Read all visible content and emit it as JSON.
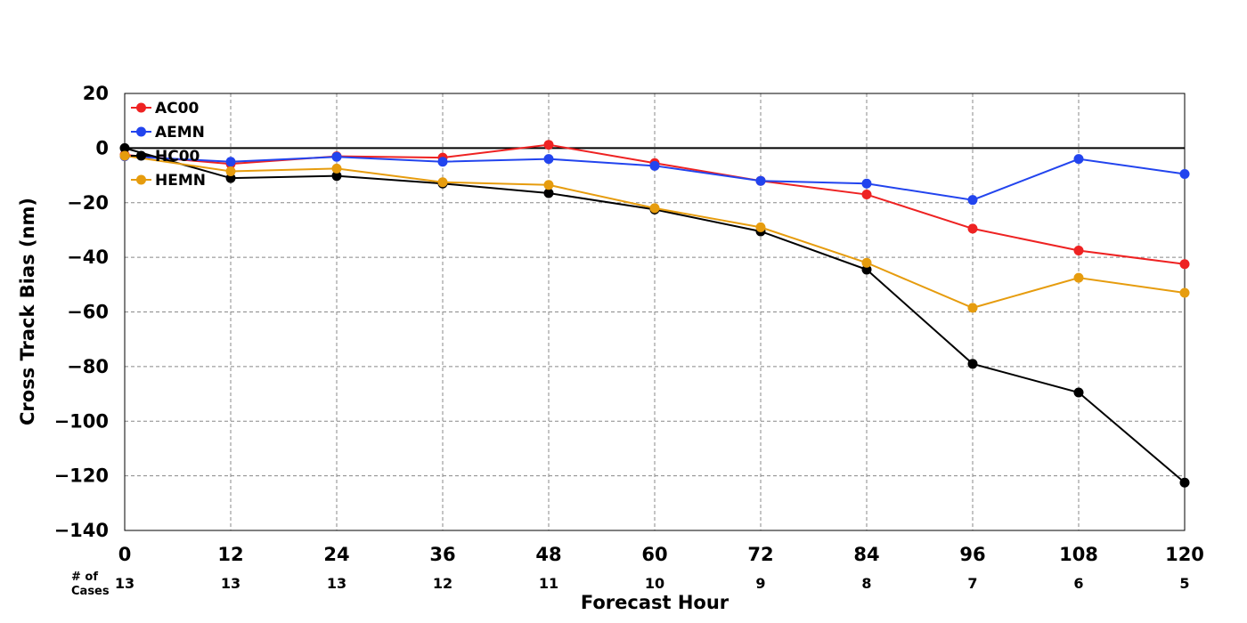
{
  "chart_data": {
    "type": "line",
    "xlabel": "Forecast Hour",
    "ylabel": "Cross Track Bias (nm)",
    "x": [
      0,
      12,
      24,
      36,
      48,
      60,
      72,
      84,
      96,
      108,
      120
    ],
    "xticks": [
      "0",
      "12",
      "24",
      "36",
      "48",
      "60",
      "72",
      "84",
      "96",
      "108",
      "120"
    ],
    "yticks": [
      "20",
      "0",
      "−20",
      "−40",
      "−60",
      "−80",
      "−100",
      "−120",
      "−140"
    ],
    "xlim": [
      0,
      120
    ],
    "ylim": [
      -140,
      20
    ],
    "grid": true,
    "legend_position": "top-left",
    "zero_line": true,
    "cases_label": "# of Cases",
    "cases_label_line1": "# of",
    "cases_label_line2": "Cases",
    "cases": [
      "13",
      "13",
      "13",
      "12",
      "11",
      "10",
      "9",
      "8",
      "7",
      "6",
      "5"
    ],
    "series": [
      {
        "name": "AC00",
        "color": "#ee2222",
        "values": [
          -2.5,
          -5.8,
          -3.0,
          -3.5,
          1.2,
          -5.5,
          -12.0,
          -17.0,
          -29.5,
          -37.5,
          -42.5
        ]
      },
      {
        "name": "AEMN",
        "color": "#2244ee",
        "values": [
          -3.0,
          -5.0,
          -3.2,
          -5.0,
          -4.0,
          -6.5,
          -12.0,
          -13.0,
          -19.0,
          -4.0,
          -9.5
        ]
      },
      {
        "name": "HC00",
        "color": "#000000",
        "values": [
          0.0,
          -11.0,
          -10.2,
          -13.0,
          -16.5,
          -22.5,
          -30.5,
          -44.5,
          -79.0,
          -89.5,
          -122.5
        ]
      },
      {
        "name": "HEMN",
        "color": "#e69c0e",
        "values": [
          -2.8,
          -8.5,
          -7.5,
          -12.5,
          -13.5,
          -22.0,
          -29.0,
          -42.0,
          -58.5,
          -47.5,
          -53.0
        ]
      }
    ]
  }
}
